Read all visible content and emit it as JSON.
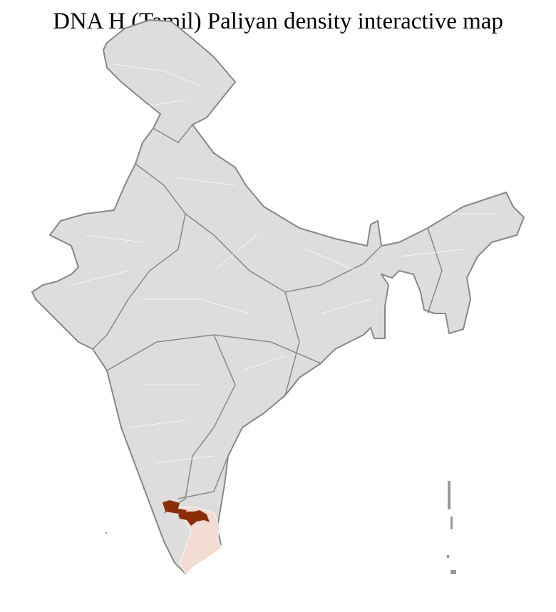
{
  "title": "DNA H (Tamil) Paliyan density interactive map",
  "colors": {
    "land": "#dddddd",
    "state_border": "#888888",
    "district_border": "#ffffff",
    "high_density": "#8b2e07",
    "low_density": "#f2dbd0"
  }
}
